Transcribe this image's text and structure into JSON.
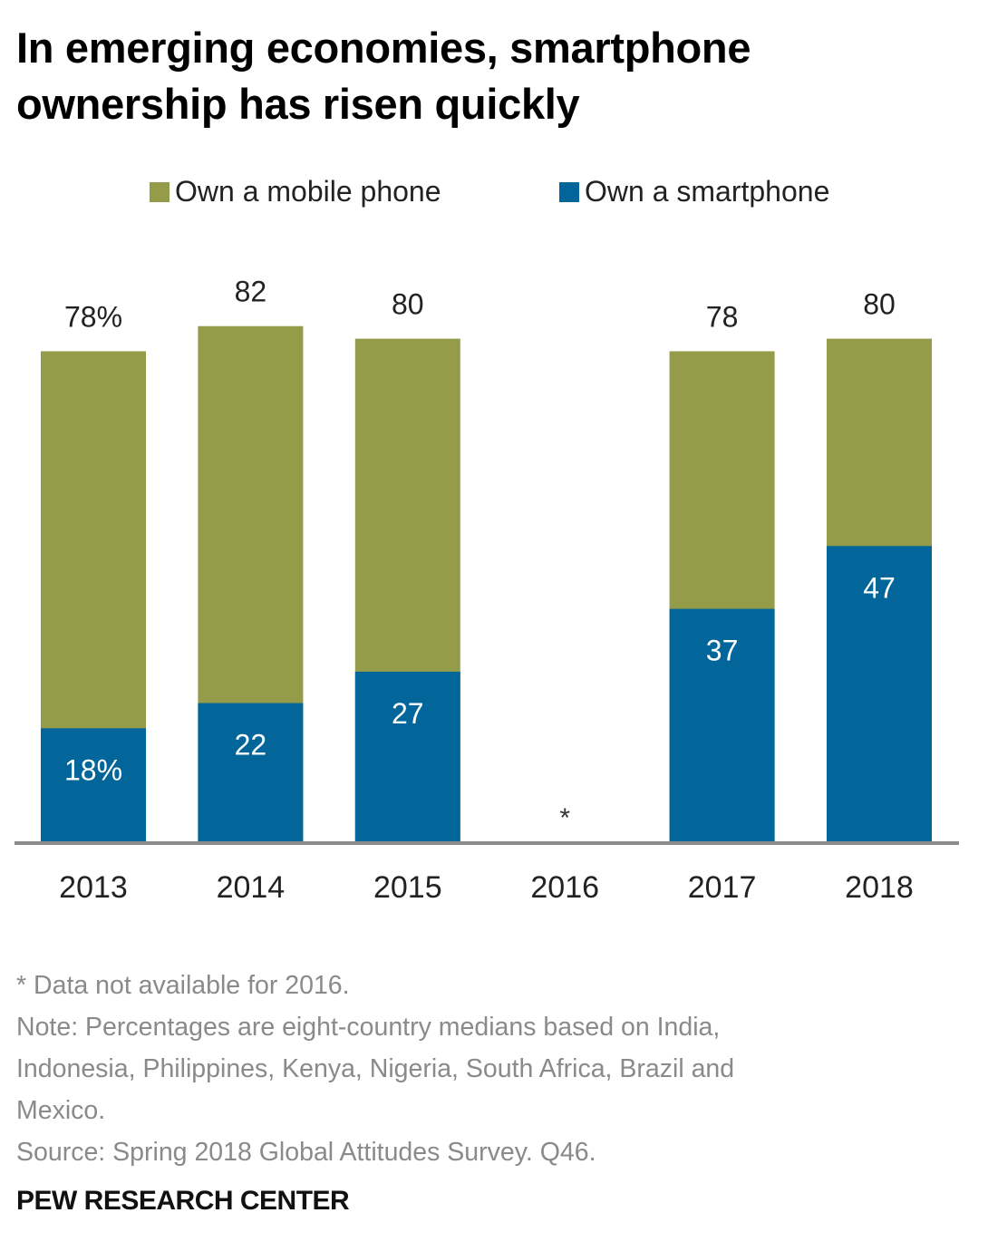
{
  "title_lines": [
    "In emerging economies, smartphone",
    "ownership has risen quickly"
  ],
  "colors": {
    "mobile": "#949c4a",
    "smartphone": "#03669a",
    "axis": "#8c8c8c",
    "footnote": "#8a8a8a"
  },
  "chart_data": {
    "type": "bar",
    "stacking": "overlapping",
    "title": "In emerging economies, smartphone ownership has risen quickly",
    "xlabel": "",
    "ylabel": "",
    "ylim": [
      0,
      100
    ],
    "grid": false,
    "legend_position": "top-center",
    "categories": [
      "2013",
      "2014",
      "2015",
      "2016",
      "2017",
      "2018"
    ],
    "series": [
      {
        "name": "Own a mobile phone",
        "color": "#949c4a",
        "values": [
          78,
          82,
          80,
          null,
          78,
          80
        ],
        "labels": [
          "78%",
          "82",
          "80",
          "",
          "78",
          "80"
        ]
      },
      {
        "name": "Own a smartphone",
        "color": "#03669a",
        "values": [
          18,
          22,
          27,
          null,
          37,
          47
        ],
        "labels": [
          "18%",
          "22",
          "27",
          "",
          "37",
          "47"
        ]
      }
    ],
    "annotations": [
      {
        "category": "2016",
        "text": "*"
      }
    ]
  },
  "footnotes": [
    "* Data not available for 2016.",
    "Note: Percentages are eight-country medians based on India,",
    "Indonesia, Philippines, Kenya, Nigeria, South Africa, Brazil and",
    "Mexico.",
    "Source: Spring 2018 Global Attitudes Survey. Q46."
  ],
  "brand": "PEW RESEARCH CENTER"
}
